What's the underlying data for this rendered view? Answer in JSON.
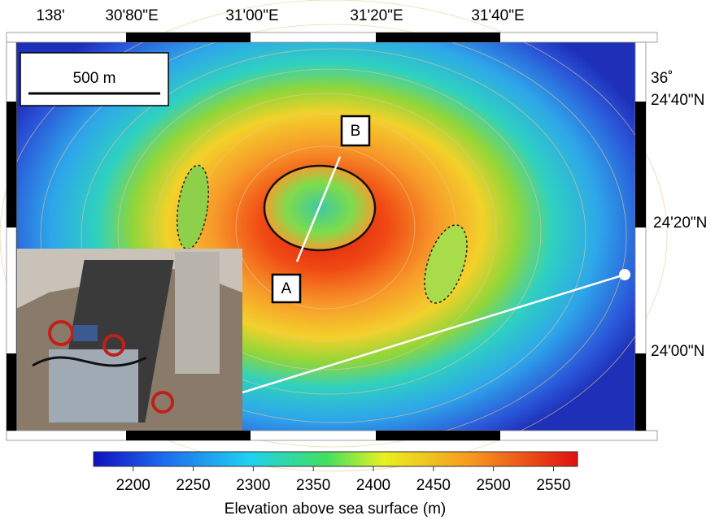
{
  "map": {
    "top_labels": [
      "138'",
      "30'80\"E",
      "31'00\"E",
      "31'20\"E",
      "31'40\"E"
    ],
    "right_labels": [
      "36˚",
      "24'40\"N",
      "24'20\"N",
      "24'00\"N"
    ],
    "scale_bar": "500 m",
    "markers": [
      "A",
      "B"
    ]
  },
  "colorbar": {
    "title": "Elevation above sea surface (m)",
    "lim": [
      2167,
      2570
    ],
    "ticks": [
      2200,
      2250,
      2300,
      2350,
      2400,
      2450,
      2500,
      2550
    ]
  }
}
